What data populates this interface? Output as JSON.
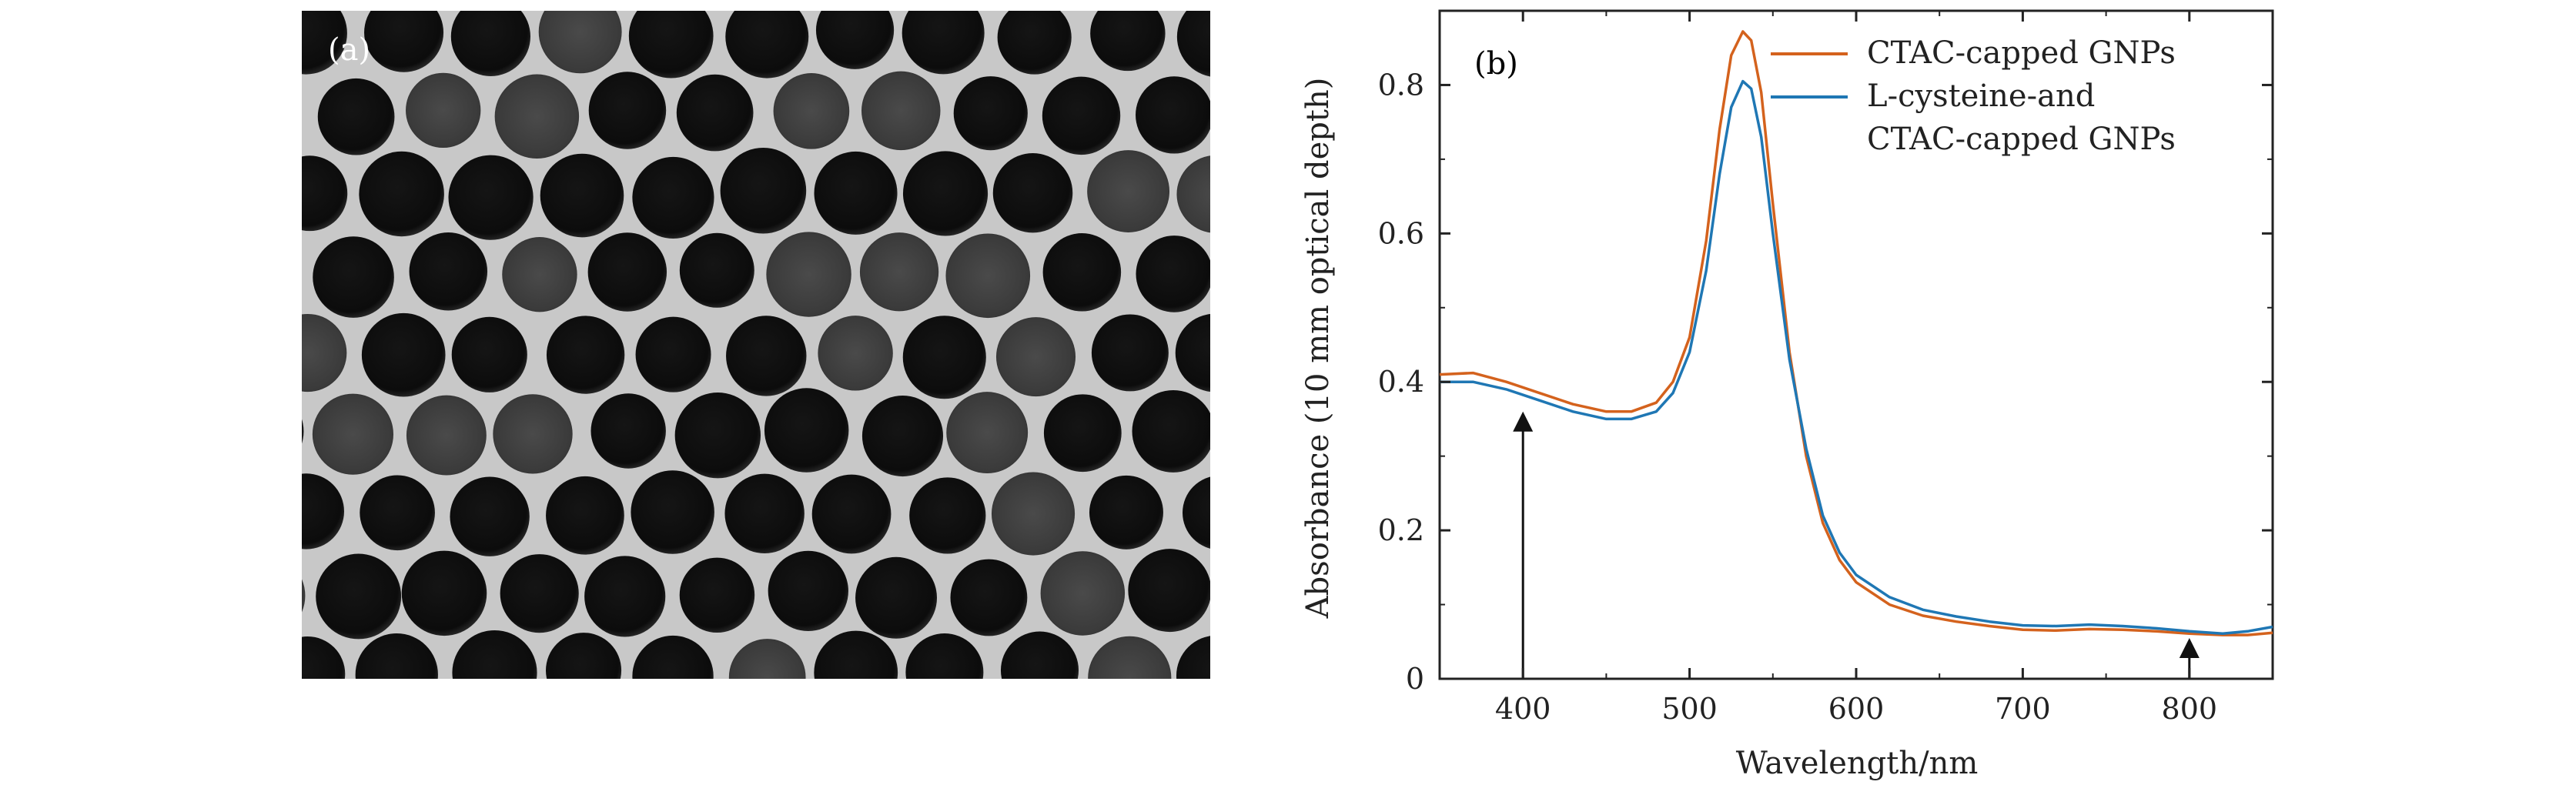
{
  "panel_a": {
    "label": "(a)"
  },
  "chart_data": {
    "type": "line",
    "panel_label": "(b)",
    "xlabel": "Wavelength/nm",
    "ylabel": "Absorbance (10 mm optical depth)",
    "xlim": [
      350,
      850
    ],
    "ylim": [
      0,
      0.9
    ],
    "xticks": [
      400,
      500,
      600,
      700,
      800
    ],
    "yticks": [
      0,
      0.2,
      0.4,
      0.6,
      0.8
    ],
    "ytick_labels": [
      "0",
      "0.2",
      "0.4",
      "0.6",
      "0.8"
    ],
    "grid": false,
    "legend": "top-right",
    "series": [
      {
        "name": "CTAC-capped GNPs",
        "color": "#d4621d",
        "points": [
          [
            350,
            0.41
          ],
          [
            370,
            0.412
          ],
          [
            390,
            0.4
          ],
          [
            410,
            0.385
          ],
          [
            430,
            0.37
          ],
          [
            450,
            0.36
          ],
          [
            465,
            0.36
          ],
          [
            480,
            0.372
          ],
          [
            490,
            0.4
          ],
          [
            500,
            0.46
          ],
          [
            510,
            0.59
          ],
          [
            518,
            0.74
          ],
          [
            525,
            0.84
          ],
          [
            532,
            0.872
          ],
          [
            537,
            0.86
          ],
          [
            543,
            0.79
          ],
          [
            550,
            0.64
          ],
          [
            560,
            0.44
          ],
          [
            570,
            0.3
          ],
          [
            580,
            0.21
          ],
          [
            590,
            0.16
          ],
          [
            600,
            0.13
          ],
          [
            620,
            0.1
          ],
          [
            640,
            0.085
          ],
          [
            660,
            0.077
          ],
          [
            680,
            0.071
          ],
          [
            700,
            0.066
          ],
          [
            720,
            0.065
          ],
          [
            740,
            0.067
          ],
          [
            760,
            0.066
          ],
          [
            780,
            0.064
          ],
          [
            800,
            0.061
          ],
          [
            820,
            0.059
          ],
          [
            835,
            0.059
          ],
          [
            850,
            0.062
          ]
        ]
      },
      {
        "name": "L-cysteine-and CTAC-capped GNPs",
        "color": "#1f77b4",
        "points": [
          [
            350,
            0.4
          ],
          [
            370,
            0.4
          ],
          [
            390,
            0.39
          ],
          [
            410,
            0.375
          ],
          [
            430,
            0.36
          ],
          [
            450,
            0.35
          ],
          [
            465,
            0.35
          ],
          [
            480,
            0.36
          ],
          [
            490,
            0.385
          ],
          [
            500,
            0.44
          ],
          [
            510,
            0.55
          ],
          [
            518,
            0.68
          ],
          [
            525,
            0.77
          ],
          [
            532,
            0.805
          ],
          [
            537,
            0.795
          ],
          [
            543,
            0.73
          ],
          [
            550,
            0.6
          ],
          [
            560,
            0.43
          ],
          [
            570,
            0.31
          ],
          [
            580,
            0.22
          ],
          [
            590,
            0.17
          ],
          [
            600,
            0.14
          ],
          [
            620,
            0.11
          ],
          [
            640,
            0.093
          ],
          [
            660,
            0.084
          ],
          [
            680,
            0.077
          ],
          [
            700,
            0.072
          ],
          [
            720,
            0.071
          ],
          [
            740,
            0.073
          ],
          [
            760,
            0.071
          ],
          [
            780,
            0.068
          ],
          [
            800,
            0.064
          ],
          [
            820,
            0.061
          ],
          [
            835,
            0.064
          ],
          [
            850,
            0.07
          ]
        ]
      }
    ],
    "legend_entries": [
      {
        "lines": [
          "CTAC-capped GNPs"
        ]
      },
      {
        "lines": [
          "L-cysteine-and",
          "CTAC-capped GNPs"
        ]
      }
    ],
    "annotations": [
      {
        "type": "arrow",
        "x": 400,
        "y_from": 0,
        "y_to": 0.36
      },
      {
        "type": "arrow",
        "x": 800,
        "y_from": 0,
        "y_to": 0.055
      }
    ]
  }
}
